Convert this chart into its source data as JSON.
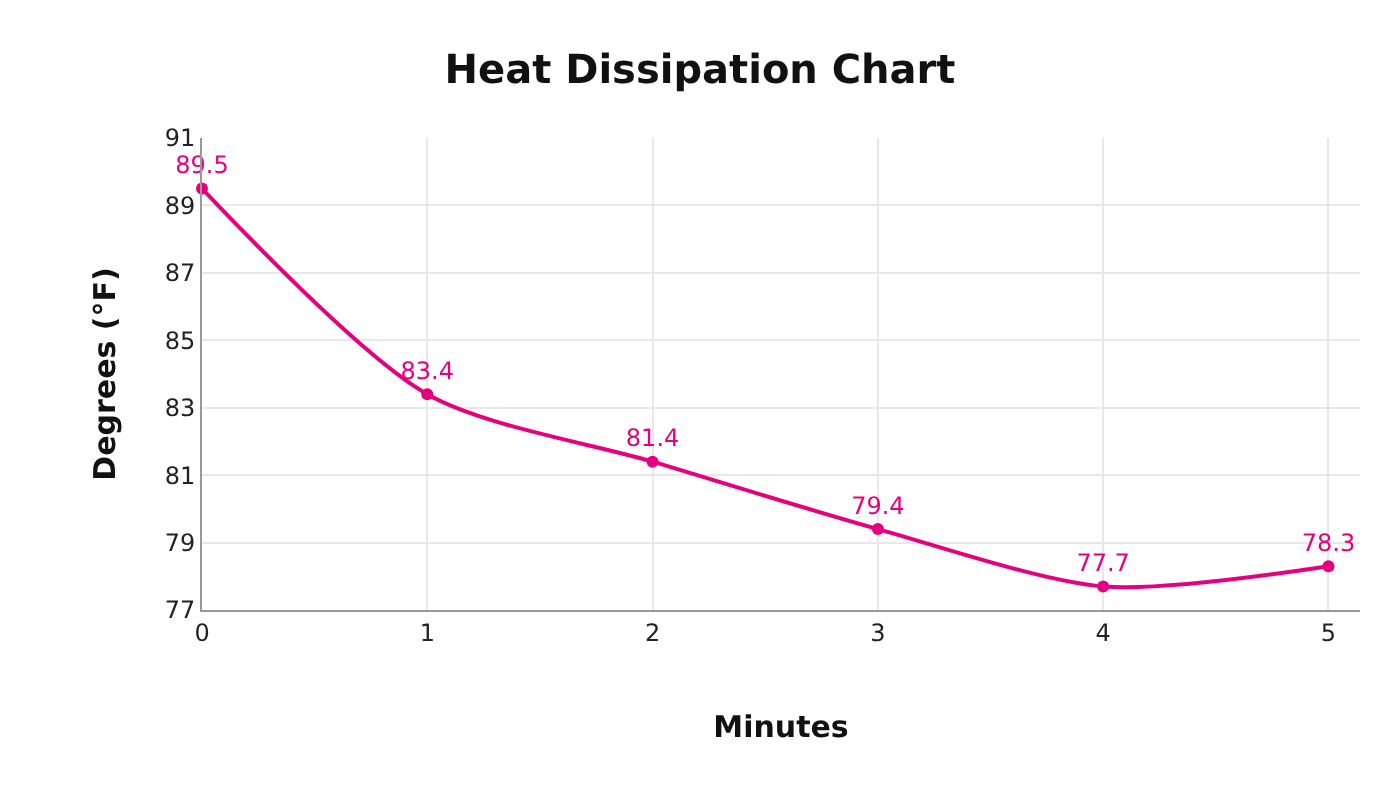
{
  "chart_data": {
    "type": "line",
    "title": "Heat Dissipation Chart",
    "xlabel": "Minutes",
    "ylabel": "Degrees (°F)",
    "x": [
      0,
      1,
      2,
      3,
      4,
      5
    ],
    "series": [
      {
        "color": "#e5007d",
        "values": [
          89.5,
          83.4,
          81.4,
          79.4,
          77.7,
          78.3
        ]
      }
    ],
    "xlim": [
      0,
      5.14
    ],
    "xticks": [
      0,
      1,
      2,
      3,
      4,
      5
    ],
    "ylim": [
      77,
      91
    ],
    "yticks": [
      77,
      79,
      81,
      83,
      85,
      87,
      89,
      91
    ],
    "grid": true,
    "legend": false,
    "marker": "circle",
    "line_style": "solid",
    "data_labels": true
  }
}
